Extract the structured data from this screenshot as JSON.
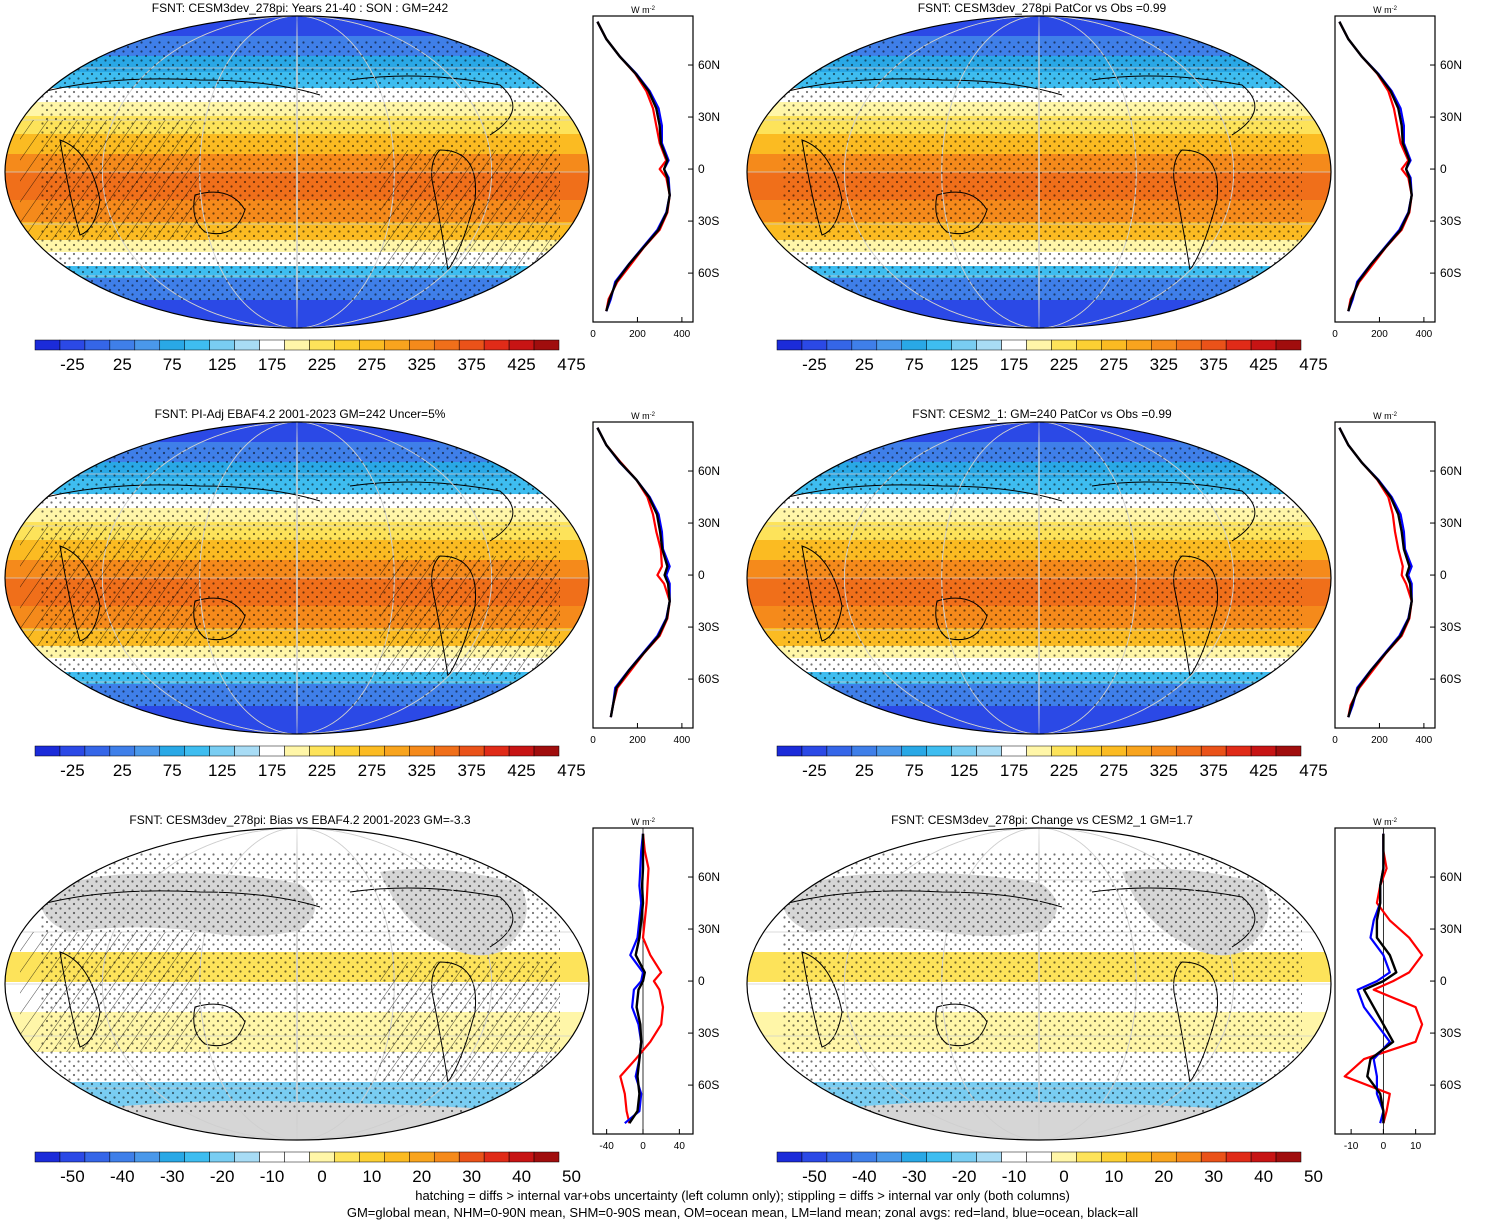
{
  "footer": {
    "line1": "hatching = diffs > internal var+obs uncertainty (left column only); stippling = diffs > internal var only (both columns)",
    "line2": "GM=global mean, NHM=0-90N mean, SHM=0-90S mean, OM=ocean mean, LM=land mean; zonal avgs: red=land, blue=ocean, black=all"
  },
  "chart_data": [
    {
      "type": "heatmap",
      "title": "FSNT: CESM3dev_278pi: Years 21-40 : SON : GM=242",
      "colorbar": {
        "ticks": [
          -25,
          25,
          75,
          125,
          175,
          225,
          275,
          325,
          375,
          425,
          475
        ],
        "range": [
          -50,
          500
        ]
      },
      "hatching": true,
      "zonal_avg": {
        "type": "line",
        "units": "W m-2",
        "xlim": [
          0,
          450
        ],
        "xticks": [
          0,
          200,
          400
        ],
        "ylim": [
          -90,
          90
        ],
        "yticks": [
          "60N",
          "30N",
          "0",
          "30S",
          "60S"
        ],
        "lat": [
          85,
          75,
          65,
          55,
          45,
          35,
          25,
          15,
          5,
          0,
          -5,
          -15,
          -25,
          -35,
          -45,
          -55,
          -65,
          -75,
          -82
        ],
        "series": [
          {
            "color": "#ff0000",
            "values": [
              20,
              60,
              120,
              190,
              240,
              270,
              285,
              300,
              330,
              300,
              330,
              345,
              335,
              300,
              230,
              170,
              110,
              70,
              60
            ]
          },
          {
            "color": "#0000ff",
            "values": [
              20,
              60,
              120,
              195,
              255,
              295,
              310,
              310,
              340,
              320,
              340,
              345,
              330,
              290,
              225,
              160,
              100,
              80,
              60
            ]
          },
          {
            "color": "#000000",
            "values": [
              20,
              60,
              120,
              192,
              250,
              285,
              300,
              305,
              335,
              320,
              335,
              345,
              332,
              295,
              228,
              162,
              105,
              75,
              60
            ]
          }
        ]
      }
    },
    {
      "type": "heatmap",
      "title": "FSNT: CESM3dev_278pi PatCor vs Obs =0.99",
      "colorbar": {
        "ticks": [
          -25,
          25,
          75,
          125,
          175,
          225,
          275,
          325,
          375,
          425,
          475
        ],
        "range": [
          -50,
          500
        ]
      },
      "hatching": false,
      "zonal_avg": {
        "type": "line",
        "units": "W m-2",
        "xlim": [
          0,
          450
        ],
        "xticks": [
          0,
          200,
          400
        ],
        "ylim": [
          -90,
          90
        ],
        "yticks": [
          "60N",
          "30N",
          "0",
          "30S",
          "60S"
        ],
        "lat": [
          85,
          75,
          65,
          55,
          45,
          35,
          25,
          15,
          5,
          0,
          -5,
          -15,
          -25,
          -35,
          -45,
          -55,
          -65,
          -75,
          -82
        ],
        "series": [
          {
            "color": "#ff0000",
            "values": [
              20,
              60,
              120,
              190,
              240,
              265,
              280,
              295,
              330,
              300,
              330,
              345,
              335,
              300,
              230,
              170,
              110,
              70,
              60
            ]
          },
          {
            "color": "#0000ff",
            "values": [
              20,
              60,
              120,
              195,
              255,
              295,
              310,
              310,
              340,
              320,
              340,
              345,
              330,
              290,
              225,
              160,
              100,
              80,
              60
            ]
          },
          {
            "color": "#000000",
            "values": [
              20,
              60,
              120,
              192,
              250,
              285,
              300,
              305,
              335,
              320,
              335,
              345,
              332,
              295,
              228,
              162,
              105,
              75,
              60
            ]
          }
        ]
      }
    },
    {
      "type": "heatmap",
      "title": "FSNT: PI-Adj EBAF4.2 2001-2023 GM=242 Uncer=5%",
      "colorbar": {
        "ticks": [
          -25,
          25,
          75,
          125,
          175,
          225,
          275,
          325,
          375,
          425,
          475
        ],
        "range": [
          -50,
          500
        ]
      },
      "hatching": true,
      "zonal_avg": {
        "type": "line",
        "units": "W m-2",
        "xlim": [
          0,
          450
        ],
        "xticks": [
          0,
          200,
          400
        ],
        "ylim": [
          -90,
          90
        ],
        "yticks": [
          "60N",
          "30N",
          "0",
          "30S",
          "60S"
        ],
        "lat": [
          85,
          75,
          65,
          55,
          45,
          35,
          25,
          15,
          5,
          0,
          -5,
          -15,
          -25,
          -35,
          -45,
          -55,
          -65,
          -75,
          -82
        ],
        "series": [
          {
            "color": "#ff0000",
            "values": [
              20,
              60,
              125,
              195,
              245,
              270,
              285,
              305,
              310,
              290,
              320,
              345,
              335,
              300,
              230,
              170,
              110,
              90,
              80
            ]
          },
          {
            "color": "#0000ff",
            "values": [
              20,
              60,
              120,
              195,
              255,
              295,
              310,
              315,
              345,
              330,
              345,
              345,
              330,
              290,
              225,
              160,
              100,
              90,
              80
            ]
          },
          {
            "color": "#000000",
            "values": [
              20,
              60,
              122,
              195,
              252,
              288,
              302,
              312,
              335,
              322,
              338,
              345,
              332,
              295,
              228,
              162,
              105,
              90,
              80
            ]
          }
        ]
      }
    },
    {
      "type": "heatmap",
      "title": "FSNT: CESM2_1: GM=240 PatCor vs Obs =0.99",
      "colorbar": {
        "ticks": [
          -25,
          25,
          75,
          125,
          175,
          225,
          275,
          325,
          375,
          425,
          475
        ],
        "range": [
          -50,
          500
        ]
      },
      "hatching": false,
      "zonal_avg": {
        "type": "line",
        "units": "W m-2",
        "xlim": [
          0,
          450
        ],
        "xticks": [
          0,
          200,
          400
        ],
        "ylim": [
          -90,
          90
        ],
        "yticks": [
          "60N",
          "30N",
          "0",
          "30S",
          "60S"
        ],
        "lat": [
          85,
          75,
          65,
          55,
          45,
          35,
          25,
          15,
          5,
          0,
          -5,
          -15,
          -25,
          -35,
          -45,
          -55,
          -65,
          -75,
          -82
        ],
        "series": [
          {
            "color": "#ff0000",
            "values": [
              20,
              60,
              120,
              190,
              240,
              260,
              270,
              285,
              305,
              300,
              320,
              345,
              335,
              300,
              230,
              170,
              110,
              70,
              60
            ]
          },
          {
            "color": "#0000ff",
            "values": [
              20,
              60,
              120,
              195,
              255,
              295,
              310,
              315,
              345,
              330,
              345,
              345,
              330,
              290,
              225,
              160,
              100,
              80,
              60
            ]
          },
          {
            "color": "#000000",
            "values": [
              20,
              60,
              120,
              192,
              250,
              285,
              300,
              310,
              335,
              322,
              338,
              345,
              332,
              295,
              228,
              162,
              105,
              75,
              60
            ]
          }
        ]
      }
    },
    {
      "type": "heatmap",
      "title": "FSNT: CESM3dev_278pi: Bias vs EBAF4.2 2001-2023  GM=-3.3",
      "colorbar": {
        "ticks": [
          -50,
          -40,
          -30,
          -20,
          -10,
          0,
          10,
          20,
          30,
          40,
          50
        ],
        "range": [
          -55,
          55
        ]
      },
      "hatching": true,
      "zonal_avg": {
        "type": "line",
        "units": "W m-2",
        "xlim": [
          -55,
          55
        ],
        "xticks": [
          -40,
          0,
          40
        ],
        "ylim": [
          -90,
          90
        ],
        "yticks": [
          "60N",
          "30N",
          "0",
          "30S",
          "60S"
        ],
        "lat": [
          85,
          75,
          65,
          55,
          45,
          35,
          25,
          15,
          5,
          0,
          -5,
          -15,
          -25,
          -35,
          -45,
          -55,
          -65,
          -75,
          -82
        ],
        "series": [
          {
            "color": "#ff0000",
            "values": [
              0,
              2,
              6,
              5,
              4,
              2,
              0,
              8,
              20,
              12,
              18,
              22,
              20,
              8,
              -8,
              -25,
              -20,
              -18,
              -15
            ]
          },
          {
            "color": "#0000ff",
            "values": [
              0,
              -2,
              -3,
              -4,
              -2,
              -4,
              -6,
              -14,
              0,
              -2,
              -10,
              -12,
              -5,
              -2,
              -4,
              -8,
              -2,
              -4,
              -20
            ]
          },
          {
            "color": "#000000",
            "values": [
              0,
              0,
              0,
              -1,
              0,
              -2,
              -4,
              -8,
              2,
              0,
              -5,
              -7,
              -3,
              -2,
              -4,
              -6,
              -4,
              -6,
              -15
            ]
          }
        ]
      }
    },
    {
      "type": "heatmap",
      "title": "FSNT: CESM3dev_278pi: Change vs CESM2_1 GM=1.7",
      "colorbar": {
        "ticks": [
          -50,
          -40,
          -30,
          -20,
          -10,
          0,
          10,
          20,
          30,
          40,
          50
        ],
        "range": [
          -55,
          55
        ]
      },
      "hatching": false,
      "zonal_avg": {
        "type": "line",
        "units": "W m-2",
        "xlim": [
          -15,
          16
        ],
        "xticks": [
          -10,
          0,
          10
        ],
        "ylim": [
          -90,
          90
        ],
        "yticks": [
          "60N",
          "30N",
          "0",
          "30S",
          "60S"
        ],
        "lat": [
          85,
          75,
          65,
          55,
          45,
          35,
          25,
          15,
          5,
          0,
          -5,
          -15,
          -25,
          -35,
          -45,
          -55,
          -65,
          -75,
          -82
        ],
        "series": [
          {
            "color": "#ff0000",
            "values": [
              0,
              0,
              1,
              -1,
              -2,
              2,
              8,
              12,
              8,
              3,
              -3,
              10,
              12,
              10,
              -6,
              -12,
              2,
              1,
              0
            ]
          },
          {
            "color": "#0000ff",
            "values": [
              0,
              0,
              0,
              -1,
              -1,
              -3,
              -4,
              0,
              2,
              -2,
              -8,
              -6,
              -2,
              2,
              -3,
              -2,
              -2,
              0,
              -1
            ]
          },
          {
            "color": "#000000",
            "values": [
              0,
              0,
              0,
              -1,
              -1,
              -2,
              -2,
              2,
              4,
              0,
              -6,
              -3,
              0,
              3,
              -4,
              -5,
              -1,
              0,
              0
            ]
          }
        ]
      }
    }
  ]
}
